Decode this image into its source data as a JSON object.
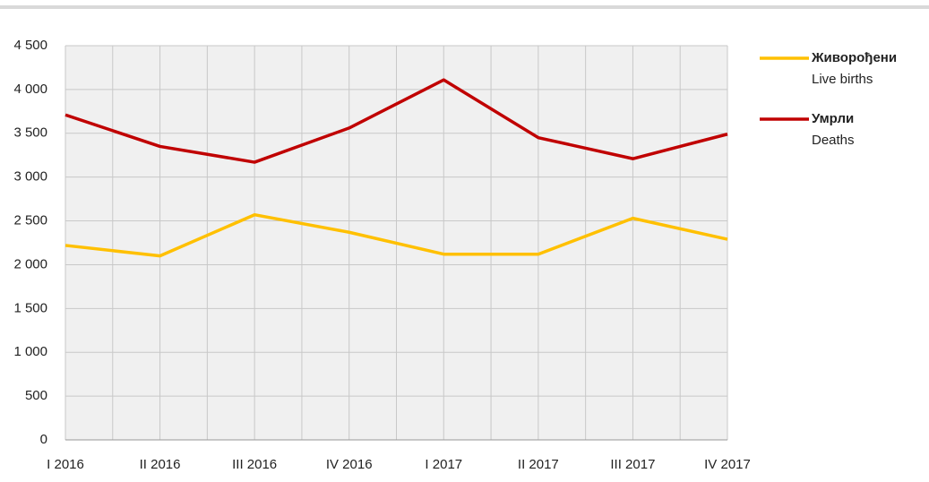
{
  "chart_data": {
    "type": "line",
    "categories": [
      "I 2016",
      "II 2016",
      "III 2016",
      "IV 2016",
      "I 2017",
      "II 2017",
      "III 2017",
      "IV 2017"
    ],
    "series": [
      {
        "name": "Живорођени",
        "name_en": "Live births",
        "color": "#ffc000",
        "values": [
          2220,
          2100,
          2570,
          2370,
          2120,
          2120,
          2530,
          2290
        ]
      },
      {
        "name": "Умрли",
        "name_en": "Deaths",
        "color": "#c00000",
        "values": [
          3710,
          3350,
          3170,
          3560,
          4110,
          3450,
          3210,
          3490
        ]
      }
    ],
    "ylim": [
      0,
      4500
    ],
    "yticks": [
      0,
      500,
      {
        "value": 1000,
        "label": "1 000"
      },
      {
        "value": 1500,
        "label": "1 500"
      },
      {
        "value": 2000,
        "label": "2 000"
      },
      {
        "value": 2500,
        "label": "2 500"
      },
      {
        "value": 3000,
        "label": "3 000"
      },
      {
        "value": 3500,
        "label": "3 500"
      },
      {
        "value": 4000,
        "label": "4 000"
      },
      {
        "value": 4500,
        "label": "4 500"
      }
    ],
    "grid": true
  }
}
